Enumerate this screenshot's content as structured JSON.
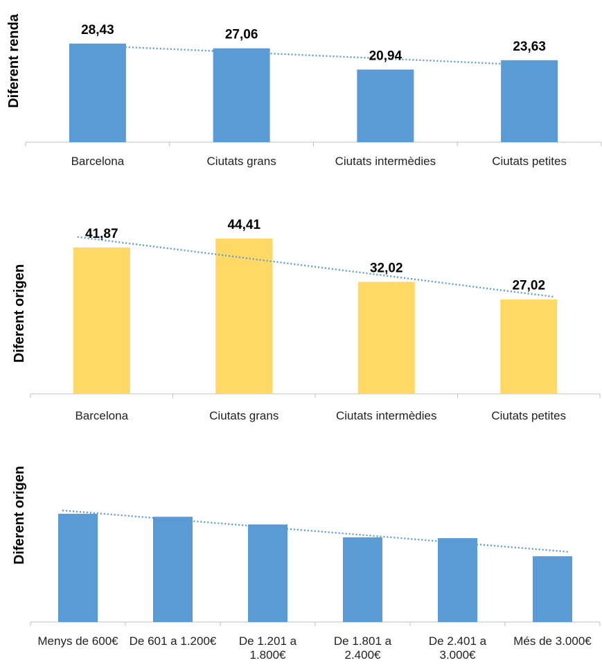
{
  "chart_data": [
    {
      "type": "bar",
      "ylabel": "Diferent renda",
      "categories": [
        "Barcelona",
        "Ciutats grans",
        "Ciutats intermèdies",
        "Ciutats petites"
      ],
      "values": [
        28.43,
        27.06,
        20.94,
        23.63
      ],
      "value_labels": [
        "28,43",
        "27,06",
        "20,94",
        "23,63"
      ],
      "ylim": [
        0,
        30
      ],
      "trendline": "linear",
      "bar_color": "#5b9bd5",
      "grid": false
    },
    {
      "type": "bar",
      "ylabel": "Diferent origen",
      "categories": [
        "Barcelona",
        "Ciutats grans",
        "Ciutats intermèdies",
        "Ciutats petites"
      ],
      "values": [
        41.87,
        44.41,
        32.02,
        27.02
      ],
      "value_labels": [
        "41,87",
        "44,41",
        "32,02",
        "27,02"
      ],
      "ylim": [
        0,
        46
      ],
      "trendline": "linear",
      "bar_color": "#ffd966",
      "grid": false
    },
    {
      "type": "bar",
      "ylabel": "Diferent origen",
      "categories": [
        [
          "Menys de 600€"
        ],
        [
          "De 601 a 1.200€"
        ],
        [
          "De 1.201 a",
          "1.800€"
        ],
        [
          "De 1.801 a",
          "2.400€"
        ],
        [
          "De 2.401 a",
          "3.000€"
        ],
        [
          "Més de 3.000€"
        ]
      ],
      "values": [
        39.5,
        38.4,
        35.6,
        30.9,
        30.6,
        24.0
      ],
      "ylim": [
        0,
        42
      ],
      "trendline": "linear",
      "bar_color": "#5b9bd5",
      "grid": false
    }
  ]
}
